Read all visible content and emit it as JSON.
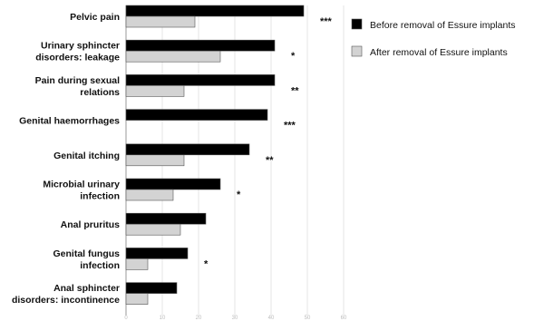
{
  "chart_data": {
    "type": "bar",
    "orientation": "horizontal",
    "categories": [
      [
        "Pelvic pain"
      ],
      [
        "Urinary sphincter",
        "disorders: leakage"
      ],
      [
        "Pain during sexual",
        "relations"
      ],
      [
        "Genital haemorrhages"
      ],
      [
        "Genital itching"
      ],
      [
        "Microbial urinary",
        "infection"
      ],
      [
        "Anal pruritus"
      ],
      [
        "Genital fungus",
        "infection"
      ],
      [
        "Anal sphincter",
        "disorders: incontinence"
      ]
    ],
    "series": [
      {
        "name": "Before removal of Essure implants",
        "color": "#000000",
        "values": [
          49,
          41,
          41,
          39,
          34,
          26,
          22,
          17,
          14
        ]
      },
      {
        "name": "After removal of Essure implants",
        "color": "#d3d3d3",
        "values": [
          19,
          26,
          16,
          null,
          16,
          13,
          15,
          6,
          6
        ]
      }
    ],
    "significance": [
      "***",
      "*",
      "**",
      "***",
      "**",
      "*",
      "",
      "*",
      ""
    ],
    "xlim": [
      0,
      60
    ],
    "xticks": [
      0,
      10,
      20,
      30,
      40,
      50,
      60
    ],
    "grid": true,
    "legend_position": "top-right",
    "title": "",
    "xlabel": "",
    "ylabel": ""
  }
}
